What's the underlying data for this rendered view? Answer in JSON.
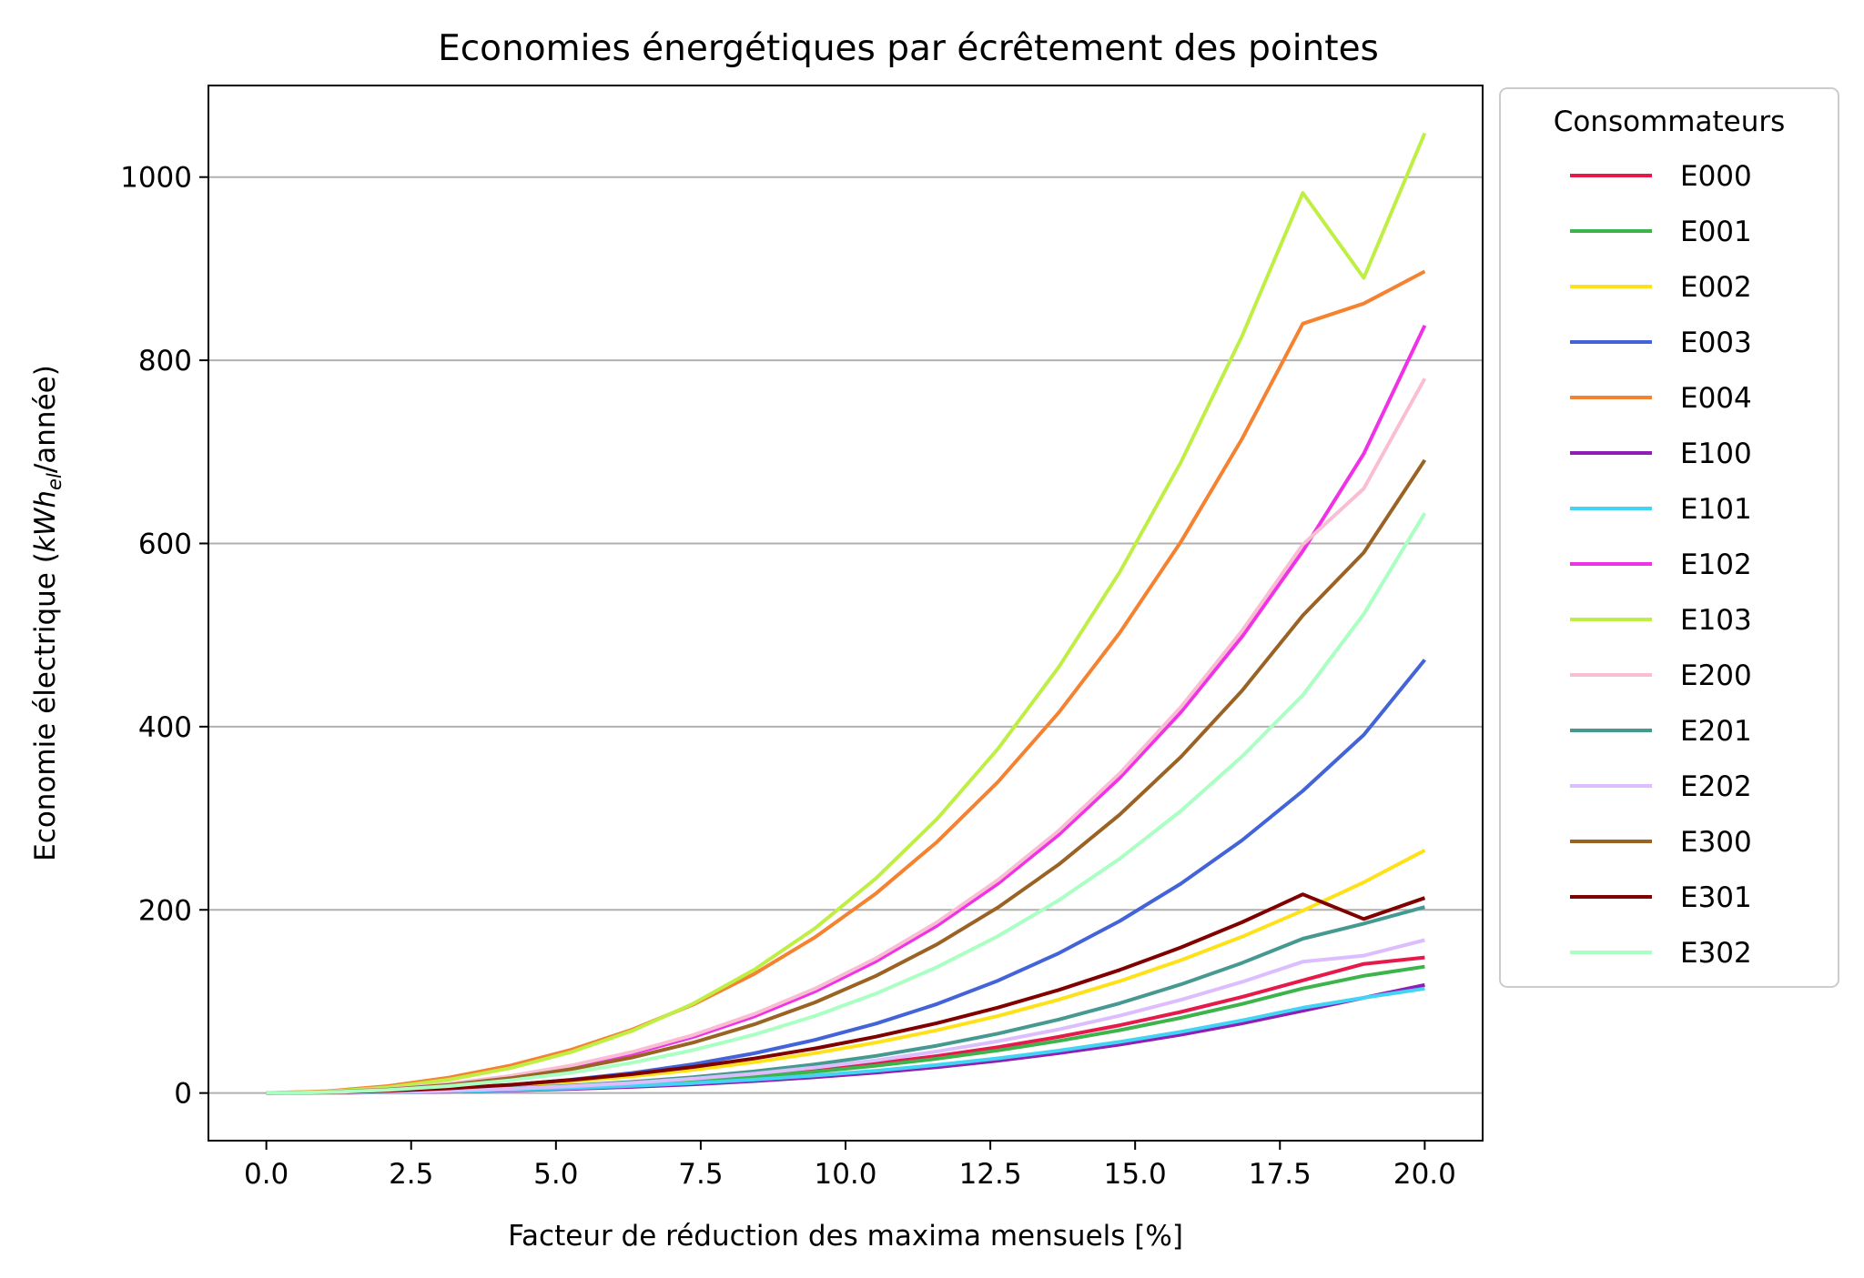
{
  "chart_data": {
    "type": "line",
    "title": "Economies énergétiques par écrêtement des pointes",
    "xlabel": "Facteur de réduction des maxima mensuels [%]",
    "ylabel": {
      "prefix": "Economie électrique (",
      "unit_main": "kWh",
      "unit_sub": "el",
      "suffix": "/année)"
    },
    "xlim": [
      -1,
      21
    ],
    "ylim": [
      -52,
      1100
    ],
    "xticks": [
      0.0,
      2.5,
      5.0,
      7.5,
      10.0,
      12.5,
      15.0,
      17.5,
      20.0
    ],
    "xtick_labels": [
      "0.0",
      "2.5",
      "5.0",
      "7.5",
      "10.0",
      "12.5",
      "15.0",
      "17.5",
      "20.0"
    ],
    "yticks": [
      0,
      200,
      400,
      600,
      800,
      1000
    ],
    "ytick_labels": [
      "0",
      "200",
      "400",
      "600",
      "800",
      "1000"
    ],
    "grid": "y",
    "legend_title": "Consommateurs",
    "legend_position": "outside right",
    "x": [
      0,
      1.053,
      2.105,
      3.158,
      4.211,
      5.263,
      6.316,
      7.368,
      8.421,
      9.474,
      10.526,
      11.579,
      12.632,
      13.684,
      14.737,
      15.789,
      16.842,
      17.895,
      18.947,
      20.0
    ],
    "series": [
      {
        "name": "E000",
        "color": "#e6194b",
        "values": [
          0,
          0.3,
          1.1,
          2.5,
          4.4,
          7.0,
          10.2,
          14.2,
          19.1,
          25.1,
          32.1,
          40.4,
          50.1,
          61.3,
          74.0,
          88.5,
          104.8,
          123.0,
          141.0,
          148
        ]
      },
      {
        "name": "E001",
        "color": "#3cb44b",
        "values": [
          0,
          0.3,
          1.0,
          2.3,
          4.1,
          6.5,
          9.5,
          13.2,
          17.8,
          23.3,
          29.8,
          37.5,
          46.5,
          56.9,
          68.7,
          82.1,
          97.2,
          114.1,
          128.0,
          138
        ]
      },
      {
        "name": "E002",
        "color": "#ffe119",
        "values": [
          0,
          0.5,
          2.0,
          4.5,
          8.0,
          12.6,
          18.3,
          25.3,
          33.6,
          43.5,
          55.1,
          68.6,
          84.2,
          102.0,
          122.2,
          145.0,
          170.6,
          199.2,
          230.0,
          265
        ]
      },
      {
        "name": "E003",
        "color": "#4363d8",
        "values": [
          0,
          0.5,
          2.1,
          4.8,
          8.9,
          14.5,
          21.9,
          31.4,
          43.3,
          58.0,
          75.8,
          97.2,
          122.7,
          152.7,
          187.8,
          228.6,
          275.7,
          329.8,
          391.0,
          473
        ]
      },
      {
        "name": "E004",
        "color": "#f58231",
        "values": [
          0,
          2.0,
          7.6,
          16.9,
          30.0,
          47.3,
          69.3,
          96.6,
          129.9,
          170.1,
          217.9,
          274.1,
          339.7,
          415.6,
          502.6,
          601.7,
          713.8,
          840.0,
          862.0,
          897
        ]
      },
      {
        "name": "E100",
        "color": "#911eb4",
        "values": [
          0,
          0.2,
          0.7,
          1.5,
          2.8,
          4.5,
          6.7,
          9.5,
          13.0,
          17.2,
          22.2,
          28.2,
          35.3,
          43.5,
          52.9,
          63.7,
          76.0,
          89.8,
          104.0,
          118
        ]
      },
      {
        "name": "E101",
        "color": "#42d4f4",
        "values": [
          0,
          0.2,
          0.8,
          1.8,
          3.3,
          5.3,
          7.8,
          10.9,
          14.6,
          19.1,
          24.4,
          30.6,
          37.9,
          46.3,
          55.9,
          66.8,
          79.2,
          93.1,
          104.0,
          114
        ]
      },
      {
        "name": "E102",
        "color": "#f032e6",
        "values": [
          0,
          0.9,
          3.9,
          9.3,
          17.3,
          28.4,
          42.9,
          61.1,
          83.6,
          111.0,
          143.8,
          182.8,
          228.6,
          282.1,
          344.2,
          415.8,
          497.9,
          591.7,
          698.0,
          838
        ]
      },
      {
        "name": "E103",
        "color": "#bfef45",
        "values": [
          0,
          1.5,
          6.2,
          14.6,
          27.2,
          44.7,
          67.9,
          97.6,
          134.6,
          179.9,
          234.4,
          299.3,
          375.8,
          465.2,
          569.0,
          688.6,
          825.9,
          982.7,
          890.0,
          1048
        ]
      },
      {
        "name": "E200",
        "color": "#fabed4",
        "values": [
          0,
          1.1,
          4.4,
          10.2,
          18.6,
          30.0,
          44.8,
          63.3,
          86.2,
          113.9,
          147.1,
          186.4,
          232.6,
          286.5,
          349.1,
          421.3,
          504.2,
          598.8,
          660.0,
          780
        ]
      },
      {
        "name": "E201",
        "color": "#469990",
        "values": [
          0,
          0.3,
          1.2,
          2.8,
          5.1,
          8.2,
          12.2,
          17.3,
          23.6,
          31.3,
          40.6,
          51.7,
          64.9,
          80.3,
          98.1,
          118.6,
          142.0,
          168.5,
          185.0,
          203
        ]
      },
      {
        "name": "E202",
        "color": "#dcbeff",
        "values": [
          0,
          0.3,
          1.1,
          2.6,
          4.7,
          7.5,
          11.1,
          15.6,
          21.1,
          27.8,
          35.8,
          45.3,
          56.5,
          69.5,
          84.5,
          101.7,
          121.2,
          143.3,
          150.0,
          167
        ]
      },
      {
        "name": "E300",
        "color": "#9a6324",
        "values": [
          0,
          1.0,
          3.9,
          8.9,
          16.2,
          26.1,
          38.9,
          55.1,
          74.9,
          99.0,
          128.0,
          162.3,
          202.6,
          249.6,
          304.1,
          366.9,
          439.0,
          521.4,
          590.0,
          691
        ]
      },
      {
        "name": "E301",
        "color": "#800000",
        "values": [
          0,
          0.6,
          2.3,
          5.1,
          9.0,
          14.2,
          20.6,
          28.4,
          37.7,
          48.7,
          61.5,
          76.3,
          93.3,
          112.6,
          134.4,
          158.9,
          186.3,
          216.9,
          190.0,
          213
        ]
      },
      {
        "name": "E302",
        "color": "#aaffc3",
        "values": [
          0,
          0.8,
          3.3,
          7.6,
          13.8,
          22.2,
          33.1,
          46.8,
          63.7,
          84.2,
          108.6,
          137.5,
          171.3,
          210.6,
          256.0,
          308.0,
          367.2,
          434.3,
          523.0,
          633
        ]
      }
    ]
  }
}
